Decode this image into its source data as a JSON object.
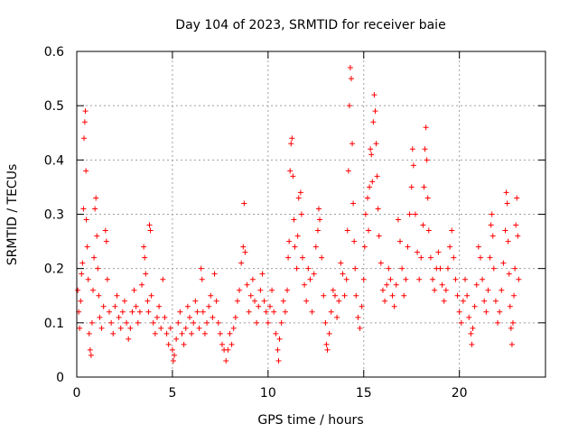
{
  "chart_data": {
    "type": "scatter",
    "title": "Day 104 of 2023, SRMTID for receiver baie",
    "xlabel": "GPS time / hours",
    "ylabel": "SRMTID / TECUs",
    "xlim": [
      0,
      24.5
    ],
    "ylim": [
      0,
      0.6
    ],
    "x_ticks": [
      0,
      5,
      10,
      15,
      20
    ],
    "y_ticks": [
      0,
      0.1,
      0.2,
      0.3,
      0.4,
      0.5,
      0.6
    ],
    "x_tick_labels": [
      "0",
      "5",
      "10",
      "15",
      "20"
    ],
    "y_tick_labels": [
      "0",
      "0.1",
      "0.2",
      "0.3",
      "0.4",
      "0.5",
      "0.6"
    ],
    "grid": true,
    "marker": "+",
    "color": "#ff0000",
    "series": [
      {
        "name": "SRMTID",
        "points": [
          [
            0.05,
            0.16
          ],
          [
            0.1,
            0.12
          ],
          [
            0.15,
            0.09
          ],
          [
            0.2,
            0.14
          ],
          [
            0.25,
            0.19
          ],
          [
            0.3,
            0.21
          ],
          [
            0.35,
            0.31
          ],
          [
            0.38,
            0.44
          ],
          [
            0.42,
            0.47
          ],
          [
            0.45,
            0.49
          ],
          [
            0.48,
            0.38
          ],
          [
            0.5,
            0.29
          ],
          [
            0.55,
            0.24
          ],
          [
            0.6,
            0.18
          ],
          [
            0.65,
            0.08
          ],
          [
            0.7,
            0.05
          ],
          [
            0.75,
            0.04
          ],
          [
            0.8,
            0.1
          ],
          [
            0.85,
            0.16
          ],
          [
            0.9,
            0.22
          ],
          [
            0.95,
            0.31
          ],
          [
            1.0,
            0.33
          ],
          [
            1.05,
            0.26
          ],
          [
            1.1,
            0.2
          ],
          [
            1.15,
            0.15
          ],
          [
            1.2,
            0.11
          ],
          [
            1.3,
            0.09
          ],
          [
            1.4,
            0.13
          ],
          [
            1.5,
            0.27
          ],
          [
            1.55,
            0.25
          ],
          [
            1.6,
            0.18
          ],
          [
            1.7,
            0.12
          ],
          [
            1.8,
            0.1
          ],
          [
            1.9,
            0.08
          ],
          [
            2.0,
            0.13
          ],
          [
            2.1,
            0.15
          ],
          [
            2.2,
            0.11
          ],
          [
            2.3,
            0.09
          ],
          [
            2.4,
            0.12
          ],
          [
            2.5,
            0.14
          ],
          [
            2.6,
            0.1
          ],
          [
            2.7,
            0.07
          ],
          [
            2.8,
            0.09
          ],
          [
            2.9,
            0.12
          ],
          [
            3.0,
            0.16
          ],
          [
            3.1,
            0.13
          ],
          [
            3.2,
            0.1
          ],
          [
            3.3,
            0.12
          ],
          [
            3.4,
            0.17
          ],
          [
            3.5,
            0.24
          ],
          [
            3.55,
            0.22
          ],
          [
            3.6,
            0.19
          ],
          [
            3.7,
            0.14
          ],
          [
            3.75,
            0.12
          ],
          [
            3.8,
            0.28
          ],
          [
            3.85,
            0.27
          ],
          [
            3.9,
            0.15
          ],
          [
            4.0,
            0.1
          ],
          [
            4.1,
            0.08
          ],
          [
            4.2,
            0.11
          ],
          [
            4.3,
            0.13
          ],
          [
            4.4,
            0.09
          ],
          [
            4.5,
            0.18
          ],
          [
            4.6,
            0.11
          ],
          [
            4.7,
            0.08
          ],
          [
            4.8,
            0.06
          ],
          [
            4.9,
            0.09
          ],
          [
            5.0,
            0.05
          ],
          [
            5.05,
            0.03
          ],
          [
            5.1,
            0.04
          ],
          [
            5.2,
            0.07
          ],
          [
            5.3,
            0.1
          ],
          [
            5.4,
            0.12
          ],
          [
            5.5,
            0.08
          ],
          [
            5.6,
            0.06
          ],
          [
            5.7,
            0.09
          ],
          [
            5.8,
            0.13
          ],
          [
            5.9,
            0.11
          ],
          [
            6.0,
            0.08
          ],
          [
            6.1,
            0.1
          ],
          [
            6.2,
            0.14
          ],
          [
            6.3,
            0.12
          ],
          [
            6.4,
            0.09
          ],
          [
            6.5,
            0.2
          ],
          [
            6.55,
            0.18
          ],
          [
            6.6,
            0.12
          ],
          [
            6.7,
            0.08
          ],
          [
            6.8,
            0.1
          ],
          [
            6.9,
            0.13
          ],
          [
            7.0,
            0.15
          ],
          [
            7.1,
            0.11
          ],
          [
            7.2,
            0.19
          ],
          [
            7.3,
            0.14
          ],
          [
            7.4,
            0.1
          ],
          [
            7.5,
            0.08
          ],
          [
            7.6,
            0.06
          ],
          [
            7.7,
            0.05
          ],
          [
            7.8,
            0.03
          ],
          [
            7.9,
            0.05
          ],
          [
            8.0,
            0.08
          ],
          [
            8.1,
            0.06
          ],
          [
            8.2,
            0.09
          ],
          [
            8.3,
            0.11
          ],
          [
            8.4,
            0.14
          ],
          [
            8.5,
            0.16
          ],
          [
            8.6,
            0.21
          ],
          [
            8.7,
            0.24
          ],
          [
            8.75,
            0.32
          ],
          [
            8.8,
            0.23
          ],
          [
            8.9,
            0.17
          ],
          [
            9.0,
            0.12
          ],
          [
            9.1,
            0.15
          ],
          [
            9.2,
            0.18
          ],
          [
            9.3,
            0.14
          ],
          [
            9.4,
            0.1
          ],
          [
            9.5,
            0.13
          ],
          [
            9.6,
            0.16
          ],
          [
            9.7,
            0.19
          ],
          [
            9.8,
            0.14
          ],
          [
            9.9,
            0.12
          ],
          [
            10.0,
            0.1
          ],
          [
            10.1,
            0.13
          ],
          [
            10.2,
            0.16
          ],
          [
            10.3,
            0.12
          ],
          [
            10.4,
            0.08
          ],
          [
            10.5,
            0.05
          ],
          [
            10.55,
            0.03
          ],
          [
            10.6,
            0.07
          ],
          [
            10.7,
            0.1
          ],
          [
            10.8,
            0.14
          ],
          [
            10.9,
            0.12
          ],
          [
            11.0,
            0.16
          ],
          [
            11.05,
            0.22
          ],
          [
            11.1,
            0.25
          ],
          [
            11.15,
            0.38
          ],
          [
            11.2,
            0.43
          ],
          [
            11.25,
            0.44
          ],
          [
            11.3,
            0.37
          ],
          [
            11.35,
            0.29
          ],
          [
            11.4,
            0.24
          ],
          [
            11.5,
            0.2
          ],
          [
            11.55,
            0.26
          ],
          [
            11.6,
            0.33
          ],
          [
            11.7,
            0.34
          ],
          [
            11.75,
            0.3
          ],
          [
            11.8,
            0.22
          ],
          [
            11.9,
            0.17
          ],
          [
            12.0,
            0.14
          ],
          [
            12.1,
            0.2
          ],
          [
            12.2,
            0.18
          ],
          [
            12.3,
            0.12
          ],
          [
            12.4,
            0.19
          ],
          [
            12.5,
            0.24
          ],
          [
            12.6,
            0.27
          ],
          [
            12.65,
            0.31
          ],
          [
            12.7,
            0.29
          ],
          [
            12.8,
            0.22
          ],
          [
            12.9,
            0.15
          ],
          [
            13.0,
            0.1
          ],
          [
            13.05,
            0.06
          ],
          [
            13.1,
            0.05
          ],
          [
            13.2,
            0.08
          ],
          [
            13.3,
            0.12
          ],
          [
            13.4,
            0.16
          ],
          [
            13.5,
            0.15
          ],
          [
            13.6,
            0.11
          ],
          [
            13.7,
            0.14
          ],
          [
            13.8,
            0.21
          ],
          [
            13.9,
            0.19
          ],
          [
            14.0,
            0.15
          ],
          [
            14.1,
            0.18
          ],
          [
            14.15,
            0.27
          ],
          [
            14.2,
            0.38
          ],
          [
            14.25,
            0.5
          ],
          [
            14.3,
            0.57
          ],
          [
            14.35,
            0.55
          ],
          [
            14.4,
            0.43
          ],
          [
            14.45,
            0.32
          ],
          [
            14.5,
            0.25
          ],
          [
            14.55,
            0.2
          ],
          [
            14.6,
            0.15
          ],
          [
            14.7,
            0.11
          ],
          [
            14.8,
            0.09
          ],
          [
            14.9,
            0.13
          ],
          [
            15.0,
            0.18
          ],
          [
            15.05,
            0.24
          ],
          [
            15.1,
            0.3
          ],
          [
            15.2,
            0.33
          ],
          [
            15.25,
            0.27
          ],
          [
            15.3,
            0.35
          ],
          [
            15.35,
            0.42
          ],
          [
            15.4,
            0.41
          ],
          [
            15.45,
            0.36
          ],
          [
            15.5,
            0.47
          ],
          [
            15.55,
            0.52
          ],
          [
            15.6,
            0.49
          ],
          [
            15.65,
            0.43
          ],
          [
            15.7,
            0.37
          ],
          [
            15.75,
            0.31
          ],
          [
            15.8,
            0.26
          ],
          [
            15.9,
            0.21
          ],
          [
            16.0,
            0.16
          ],
          [
            16.1,
            0.14
          ],
          [
            16.2,
            0.17
          ],
          [
            16.3,
            0.2
          ],
          [
            16.4,
            0.18
          ],
          [
            16.5,
            0.15
          ],
          [
            16.6,
            0.13
          ],
          [
            16.7,
            0.17
          ],
          [
            16.8,
            0.29
          ],
          [
            16.9,
            0.25
          ],
          [
            17.0,
            0.2
          ],
          [
            17.1,
            0.15
          ],
          [
            17.2,
            0.18
          ],
          [
            17.3,
            0.24
          ],
          [
            17.4,
            0.3
          ],
          [
            17.5,
            0.35
          ],
          [
            17.55,
            0.42
          ],
          [
            17.6,
            0.39
          ],
          [
            17.7,
            0.3
          ],
          [
            17.8,
            0.23
          ],
          [
            17.9,
            0.18
          ],
          [
            18.0,
            0.22
          ],
          [
            18.1,
            0.28
          ],
          [
            18.15,
            0.35
          ],
          [
            18.2,
            0.42
          ],
          [
            18.25,
            0.46
          ],
          [
            18.3,
            0.4
          ],
          [
            18.35,
            0.33
          ],
          [
            18.4,
            0.27
          ],
          [
            18.5,
            0.22
          ],
          [
            18.6,
            0.18
          ],
          [
            18.7,
            0.16
          ],
          [
            18.8,
            0.2
          ],
          [
            18.9,
            0.23
          ],
          [
            19.0,
            0.2
          ],
          [
            19.1,
            0.17
          ],
          [
            19.2,
            0.14
          ],
          [
            19.3,
            0.16
          ],
          [
            19.4,
            0.2
          ],
          [
            19.5,
            0.24
          ],
          [
            19.6,
            0.27
          ],
          [
            19.7,
            0.22
          ],
          [
            19.8,
            0.18
          ],
          [
            19.9,
            0.15
          ],
          [
            20.0,
            0.12
          ],
          [
            20.1,
            0.1
          ],
          [
            20.2,
            0.14
          ],
          [
            20.3,
            0.18
          ],
          [
            20.4,
            0.15
          ],
          [
            20.5,
            0.11
          ],
          [
            20.6,
            0.08
          ],
          [
            20.65,
            0.06
          ],
          [
            20.7,
            0.09
          ],
          [
            20.8,
            0.13
          ],
          [
            20.9,
            0.17
          ],
          [
            21.0,
            0.24
          ],
          [
            21.1,
            0.22
          ],
          [
            21.2,
            0.18
          ],
          [
            21.3,
            0.14
          ],
          [
            21.4,
            0.12
          ],
          [
            21.5,
            0.16
          ],
          [
            21.6,
            0.22
          ],
          [
            21.65,
            0.28
          ],
          [
            21.7,
            0.3
          ],
          [
            21.75,
            0.26
          ],
          [
            21.8,
            0.2
          ],
          [
            21.9,
            0.14
          ],
          [
            22.0,
            0.1
          ],
          [
            22.1,
            0.12
          ],
          [
            22.2,
            0.16
          ],
          [
            22.3,
            0.21
          ],
          [
            22.4,
            0.27
          ],
          [
            22.45,
            0.34
          ],
          [
            22.5,
            0.32
          ],
          [
            22.55,
            0.25
          ],
          [
            22.6,
            0.19
          ],
          [
            22.65,
            0.13
          ],
          [
            22.7,
            0.09
          ],
          [
            22.75,
            0.06
          ],
          [
            22.8,
            0.1
          ],
          [
            22.85,
            0.15
          ],
          [
            22.9,
            0.2
          ],
          [
            22.95,
            0.28
          ],
          [
            23.0,
            0.33
          ],
          [
            23.05,
            0.26
          ],
          [
            23.1,
            0.18
          ]
        ]
      }
    ]
  }
}
